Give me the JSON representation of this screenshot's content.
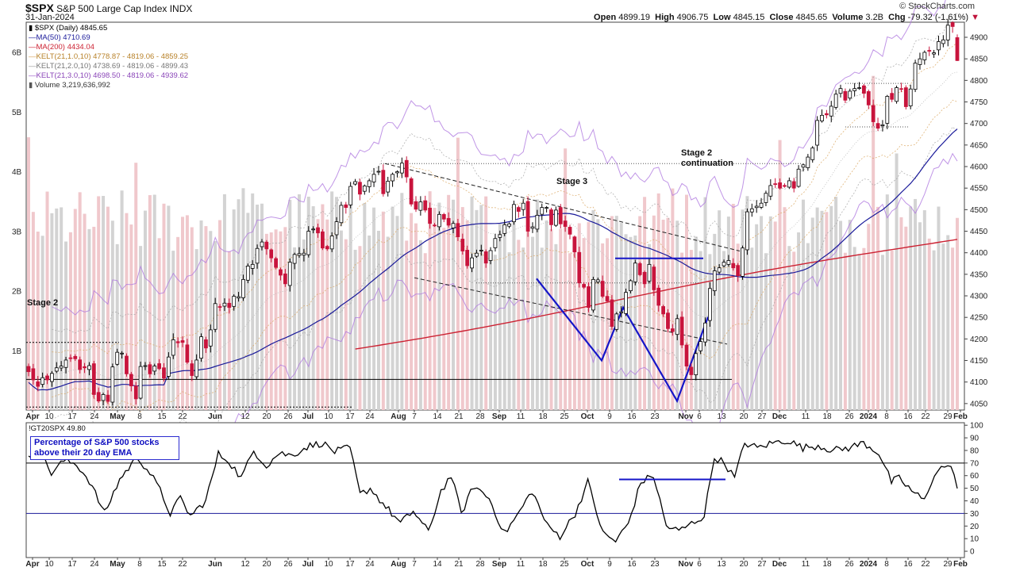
{
  "header": {
    "symbol": "$SPX",
    "name": "S&P 500 Large Cap Index",
    "exchange": "INDX",
    "date": "31-Jan-2024",
    "brand": "© StockCharts.com",
    "ohlc": {
      "open_label": "Open",
      "open": "4899.19",
      "high_label": "High",
      "high": "4906.75",
      "low_label": "Low",
      "low": "4845.15",
      "close_label": "Close",
      "close": "4845.65",
      "volume_label": "Volume",
      "volume": "3.2B",
      "chg_label": "Chg",
      "chg": "-79.32 (-1.61%)"
    }
  },
  "legend": [
    {
      "text": "$SPX (Daily) 4845.65",
      "color": "#000000",
      "icon": "candlestick-icon"
    },
    {
      "text": "MA(50) 4710.69",
      "color": "#1a1a9a",
      "icon": "line-icon"
    },
    {
      "text": "MA(200) 4434.04",
      "color": "#cc2233",
      "icon": "line-icon"
    },
    {
      "text": "KELT(21,1.0,10) 4778.87 - 4819.06 - 4859.25",
      "color": "#d8a25a",
      "icon": "line-icon"
    },
    {
      "text": "KELT(21,2.0,10) 4738.69 - 4819.06 - 4899.43",
      "color": "#999999",
      "icon": "line-icon"
    },
    {
      "text": "KELT(21,3.0,10) 4698.50 - 4819.06 - 4939.62",
      "color": "#9a55c8",
      "icon": "line-icon"
    },
    {
      "text": "Volume 3,219,636,992",
      "color": "#333333",
      "icon": "bar-icon"
    }
  ],
  "annotations": {
    "stage2_left": "Stage 2",
    "stage3": "Stage 3",
    "stage2_cont_1": "Stage 2",
    "stage2_cont_2": "continuation"
  },
  "indicator": {
    "legend": "!GT20SPX 49.80",
    "callout": "Percentage of S&P 500 stocks above their 20 day EMA"
  },
  "colors": {
    "up": "#ffffff",
    "down": "#c8143c",
    "ma50": "#1a1a9a",
    "ma200": "#cc2233",
    "kelt1": "#d8a25a",
    "kelt2": "#a0a0a0",
    "kelt3": "#b07ae0",
    "vol_up": "#d3d3d3",
    "vol_down": "#f0c8cc",
    "pattern": "#1515c8"
  },
  "chart_data": [
    {
      "type": "candlestick",
      "series_name": "$SPX (Daily)",
      "date_range": [
        "2023-04-03",
        "2024-01-31"
      ],
      "y_ticks": [
        4050,
        4100,
        4150,
        4200,
        4250,
        4300,
        4350,
        4400,
        4450,
        4500,
        4550,
        4600,
        4650,
        4700,
        4750,
        4800,
        4850,
        4900
      ],
      "ylim": [
        4035,
        4935
      ],
      "volume_ticks": [
        "1B",
        "2B",
        "3B",
        "4B",
        "5B",
        "6B"
      ],
      "volume_ylim": [
        0,
        6.5
      ],
      "x_ticks": [
        "Apr",
        "10",
        "17",
        "24",
        "May",
        "8",
        "15",
        "22",
        "Jun",
        "12",
        "20",
        "26",
        "Jul",
        "10",
        "17",
        "24",
        "Aug",
        "7",
        "14",
        "21",
        "28",
        "Sep",
        "11",
        "18",
        "25",
        "Oct",
        "9",
        "16",
        "23",
        "Nov",
        "6",
        "13",
        "20",
        "27",
        "Dec",
        "11",
        "18",
        "26",
        "2024",
        "8",
        "16",
        "22",
        "29",
        "Feb"
      ],
      "closes": [
        4124,
        4105,
        4090,
        4110,
        4105,
        4120,
        4133,
        4137,
        4151,
        4155,
        4154,
        4129,
        4133,
        4138,
        4071,
        4056,
        4071,
        4055,
        4135,
        4169,
        4167,
        4119,
        4091,
        4061,
        4136,
        4138,
        4119,
        4137,
        4131,
        4109,
        4158,
        4198,
        4191,
        4192,
        4146,
        4115,
        4151,
        4205,
        4179,
        4221,
        4282,
        4274,
        4283,
        4273,
        4299,
        4298,
        4338,
        4369,
        4373,
        4410,
        4425,
        4409,
        4388,
        4366,
        4348,
        4328,
        4378,
        4396,
        4398,
        4399,
        4450,
        4455,
        4446,
        4411,
        4409,
        4439,
        4472,
        4510,
        4505,
        4554,
        4565,
        4536,
        4555,
        4567,
        4582,
        4589,
        4537,
        4566,
        4582,
        4588,
        4608,
        4576,
        4513,
        4501,
        4518,
        4499,
        4468,
        4464,
        4489,
        4478,
        4464,
        4468,
        4437,
        4404,
        4370,
        4388,
        4399,
        4406,
        4376,
        4405,
        4433,
        4442,
        4465,
        4467,
        4512,
        4496,
        4515,
        4450,
        4460,
        4487,
        4505,
        4505,
        4465,
        4499,
        4467,
        4461,
        4443,
        4402,
        4330,
        4320,
        4273,
        4338,
        4337,
        4299,
        4288,
        4229,
        4258,
        4263,
        4308,
        4335,
        4376,
        4349,
        4328,
        4373,
        4314,
        4278,
        4258,
        4224,
        4217,
        4247,
        4186,
        4137,
        4117,
        4166,
        4194,
        4237,
        4317,
        4358,
        4365,
        4378,
        4382,
        4365,
        4347,
        4411,
        4495,
        4502,
        4508,
        4515,
        4538,
        4556,
        4559,
        4550,
        4554,
        4567,
        4550,
        4594,
        4604,
        4622,
        4643,
        4707,
        4719,
        4720,
        4740,
        4768,
        4781,
        4754,
        4775,
        4781,
        4783,
        4770,
        4743,
        4704,
        4689,
        4697,
        4763,
        4756,
        4783,
        4780,
        4739,
        4780,
        4840,
        4850,
        4865,
        4868,
        4864,
        4890,
        4894,
        4928,
        4925,
        4846
      ],
      "ma50_end": 4710.69,
      "ma200_end": 4434.04
    },
    {
      "type": "line",
      "series_name": "!GT20SPX",
      "y_ticks": [
        0,
        10,
        20,
        30,
        40,
        50,
        60,
        70,
        80,
        90,
        100
      ],
      "ylim": [
        -5,
        102
      ],
      "reference_lines": [
        70,
        30
      ],
      "last": 49.8
    }
  ]
}
